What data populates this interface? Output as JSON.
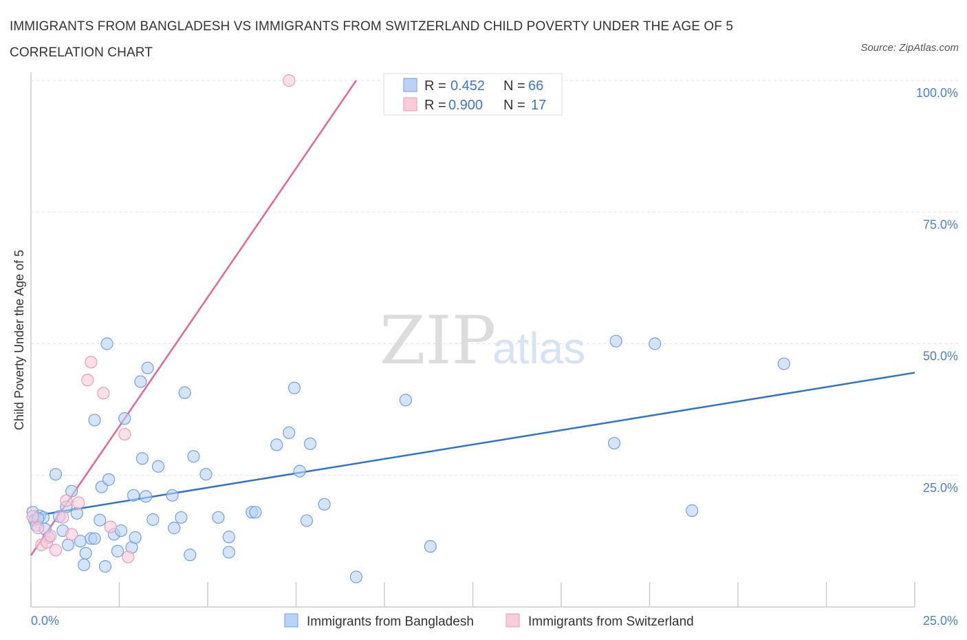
{
  "title": "IMMIGRANTS FROM BANGLADESH VS IMMIGRANTS FROM SWITZERLAND CHILD POVERTY UNDER THE AGE OF 5 CORRELATION CHART",
  "source": "Source: ZipAtlas.com",
  "watermark": {
    "zip": "ZIP",
    "atlas": "atlas"
  },
  "stats": [
    {
      "r_label": "R =",
      "r": "0.452",
      "n_label": "N =",
      "n": "66",
      "color": "#a9c8f3"
    },
    {
      "r_label": "R =",
      "r": "0.900",
      "n_label": "N =",
      "n": "17",
      "color": "#f6bfd0"
    }
  ],
  "chart_data": {
    "type": "scatter",
    "title": "IMMIGRANTS FROM BANGLADESH VS IMMIGRANTS FROM SWITZERLAND CHILD POVERTY UNDER THE AGE OF 5 CORRELATION CHART",
    "xlabel": "",
    "ylabel": "Child Poverty Under the Age of 5",
    "xlim": [
      0,
      25
    ],
    "ylim": [
      0,
      100
    ],
    "x_tick_labels": [
      "0.0%",
      "25.0%"
    ],
    "y_tick_labels": [
      "25.0%",
      "50.0%",
      "75.0%",
      "100.0%"
    ],
    "y_ticks": [
      25,
      50,
      75,
      100
    ],
    "grid": true,
    "legend_position": "bottom",
    "series": [
      {
        "name": "Immigrants from Bangladesh",
        "color": "#6ea0e6",
        "fill": "#b9d2f5",
        "trend": {
          "x": [
            0,
            25
          ],
          "y": [
            17.2,
            44.5
          ],
          "color": "#2f73d1"
        },
        "points": [
          [
            0.05,
            18.0
          ],
          [
            0.1,
            16.5
          ],
          [
            0.15,
            15.5
          ],
          [
            0.25,
            17.3
          ],
          [
            0.35,
            17.0
          ],
          [
            0.4,
            14.8
          ],
          [
            0.5,
            13.2
          ],
          [
            0.7,
            25.2
          ],
          [
            0.8,
            17.2
          ],
          [
            0.9,
            14.5
          ],
          [
            1.0,
            19.0
          ],
          [
            1.05,
            11.8
          ],
          [
            1.15,
            22.0
          ],
          [
            1.3,
            17.8
          ],
          [
            1.4,
            12.5
          ],
          [
            1.5,
            8.0
          ],
          [
            1.55,
            10.2
          ],
          [
            1.7,
            13.0
          ],
          [
            1.8,
            13.0
          ],
          [
            1.8,
            35.5
          ],
          [
            1.95,
            16.5
          ],
          [
            2.0,
            22.8
          ],
          [
            2.1,
            7.7
          ],
          [
            2.15,
            50.0
          ],
          [
            2.2,
            24.2
          ],
          [
            2.35,
            13.8
          ],
          [
            2.45,
            10.6
          ],
          [
            2.55,
            14.5
          ],
          [
            2.65,
            35.8
          ],
          [
            2.85,
            11.3
          ],
          [
            2.9,
            21.2
          ],
          [
            2.95,
            13.2
          ],
          [
            3.1,
            42.8
          ],
          [
            3.15,
            28.2
          ],
          [
            3.25,
            21.0
          ],
          [
            3.3,
            45.4
          ],
          [
            3.45,
            16.6
          ],
          [
            3.6,
            26.7
          ],
          [
            4.0,
            21.2
          ],
          [
            4.05,
            15.0
          ],
          [
            4.25,
            17.0
          ],
          [
            4.35,
            40.7
          ],
          [
            4.5,
            9.9
          ],
          [
            4.6,
            28.6
          ],
          [
            4.95,
            25.2
          ],
          [
            5.3,
            17.0
          ],
          [
            5.6,
            13.3
          ],
          [
            5.6,
            10.4
          ],
          [
            6.25,
            18.0
          ],
          [
            6.35,
            18.0
          ],
          [
            6.95,
            30.8
          ],
          [
            7.3,
            33.1
          ],
          [
            7.45,
            41.6
          ],
          [
            7.6,
            25.8
          ],
          [
            7.8,
            16.4
          ],
          [
            7.9,
            31.0
          ],
          [
            8.3,
            19.5
          ],
          [
            9.2,
            5.7
          ],
          [
            10.6,
            39.3
          ],
          [
            11.3,
            11.5
          ],
          [
            16.5,
            31.1
          ],
          [
            16.55,
            50.5
          ],
          [
            17.65,
            50.0
          ],
          [
            18.7,
            18.3
          ],
          [
            21.3,
            46.2
          ],
          [
            0.2,
            16.8
          ]
        ]
      },
      {
        "name": "Immigrants from Switzerland",
        "color": "#ee9ab4",
        "fill": "#f8ccd9",
        "trend": {
          "x": [
            0,
            9.2
          ],
          "y": [
            9.8,
            100.0
          ],
          "color": "#e5649a"
        },
        "points": [
          [
            0.05,
            17.2
          ],
          [
            0.2,
            15.0
          ],
          [
            0.3,
            11.8
          ],
          [
            0.45,
            12.3
          ],
          [
            0.55,
            13.5
          ],
          [
            0.7,
            10.8
          ],
          [
            0.9,
            17.0
          ],
          [
            1.0,
            20.2
          ],
          [
            1.15,
            13.8
          ],
          [
            1.35,
            19.8
          ],
          [
            1.6,
            43.1
          ],
          [
            1.7,
            46.5
          ],
          [
            2.05,
            40.6
          ],
          [
            2.25,
            15.2
          ],
          [
            2.65,
            32.8
          ],
          [
            2.75,
            9.5
          ],
          [
            7.3,
            100.0
          ]
        ]
      }
    ]
  }
}
